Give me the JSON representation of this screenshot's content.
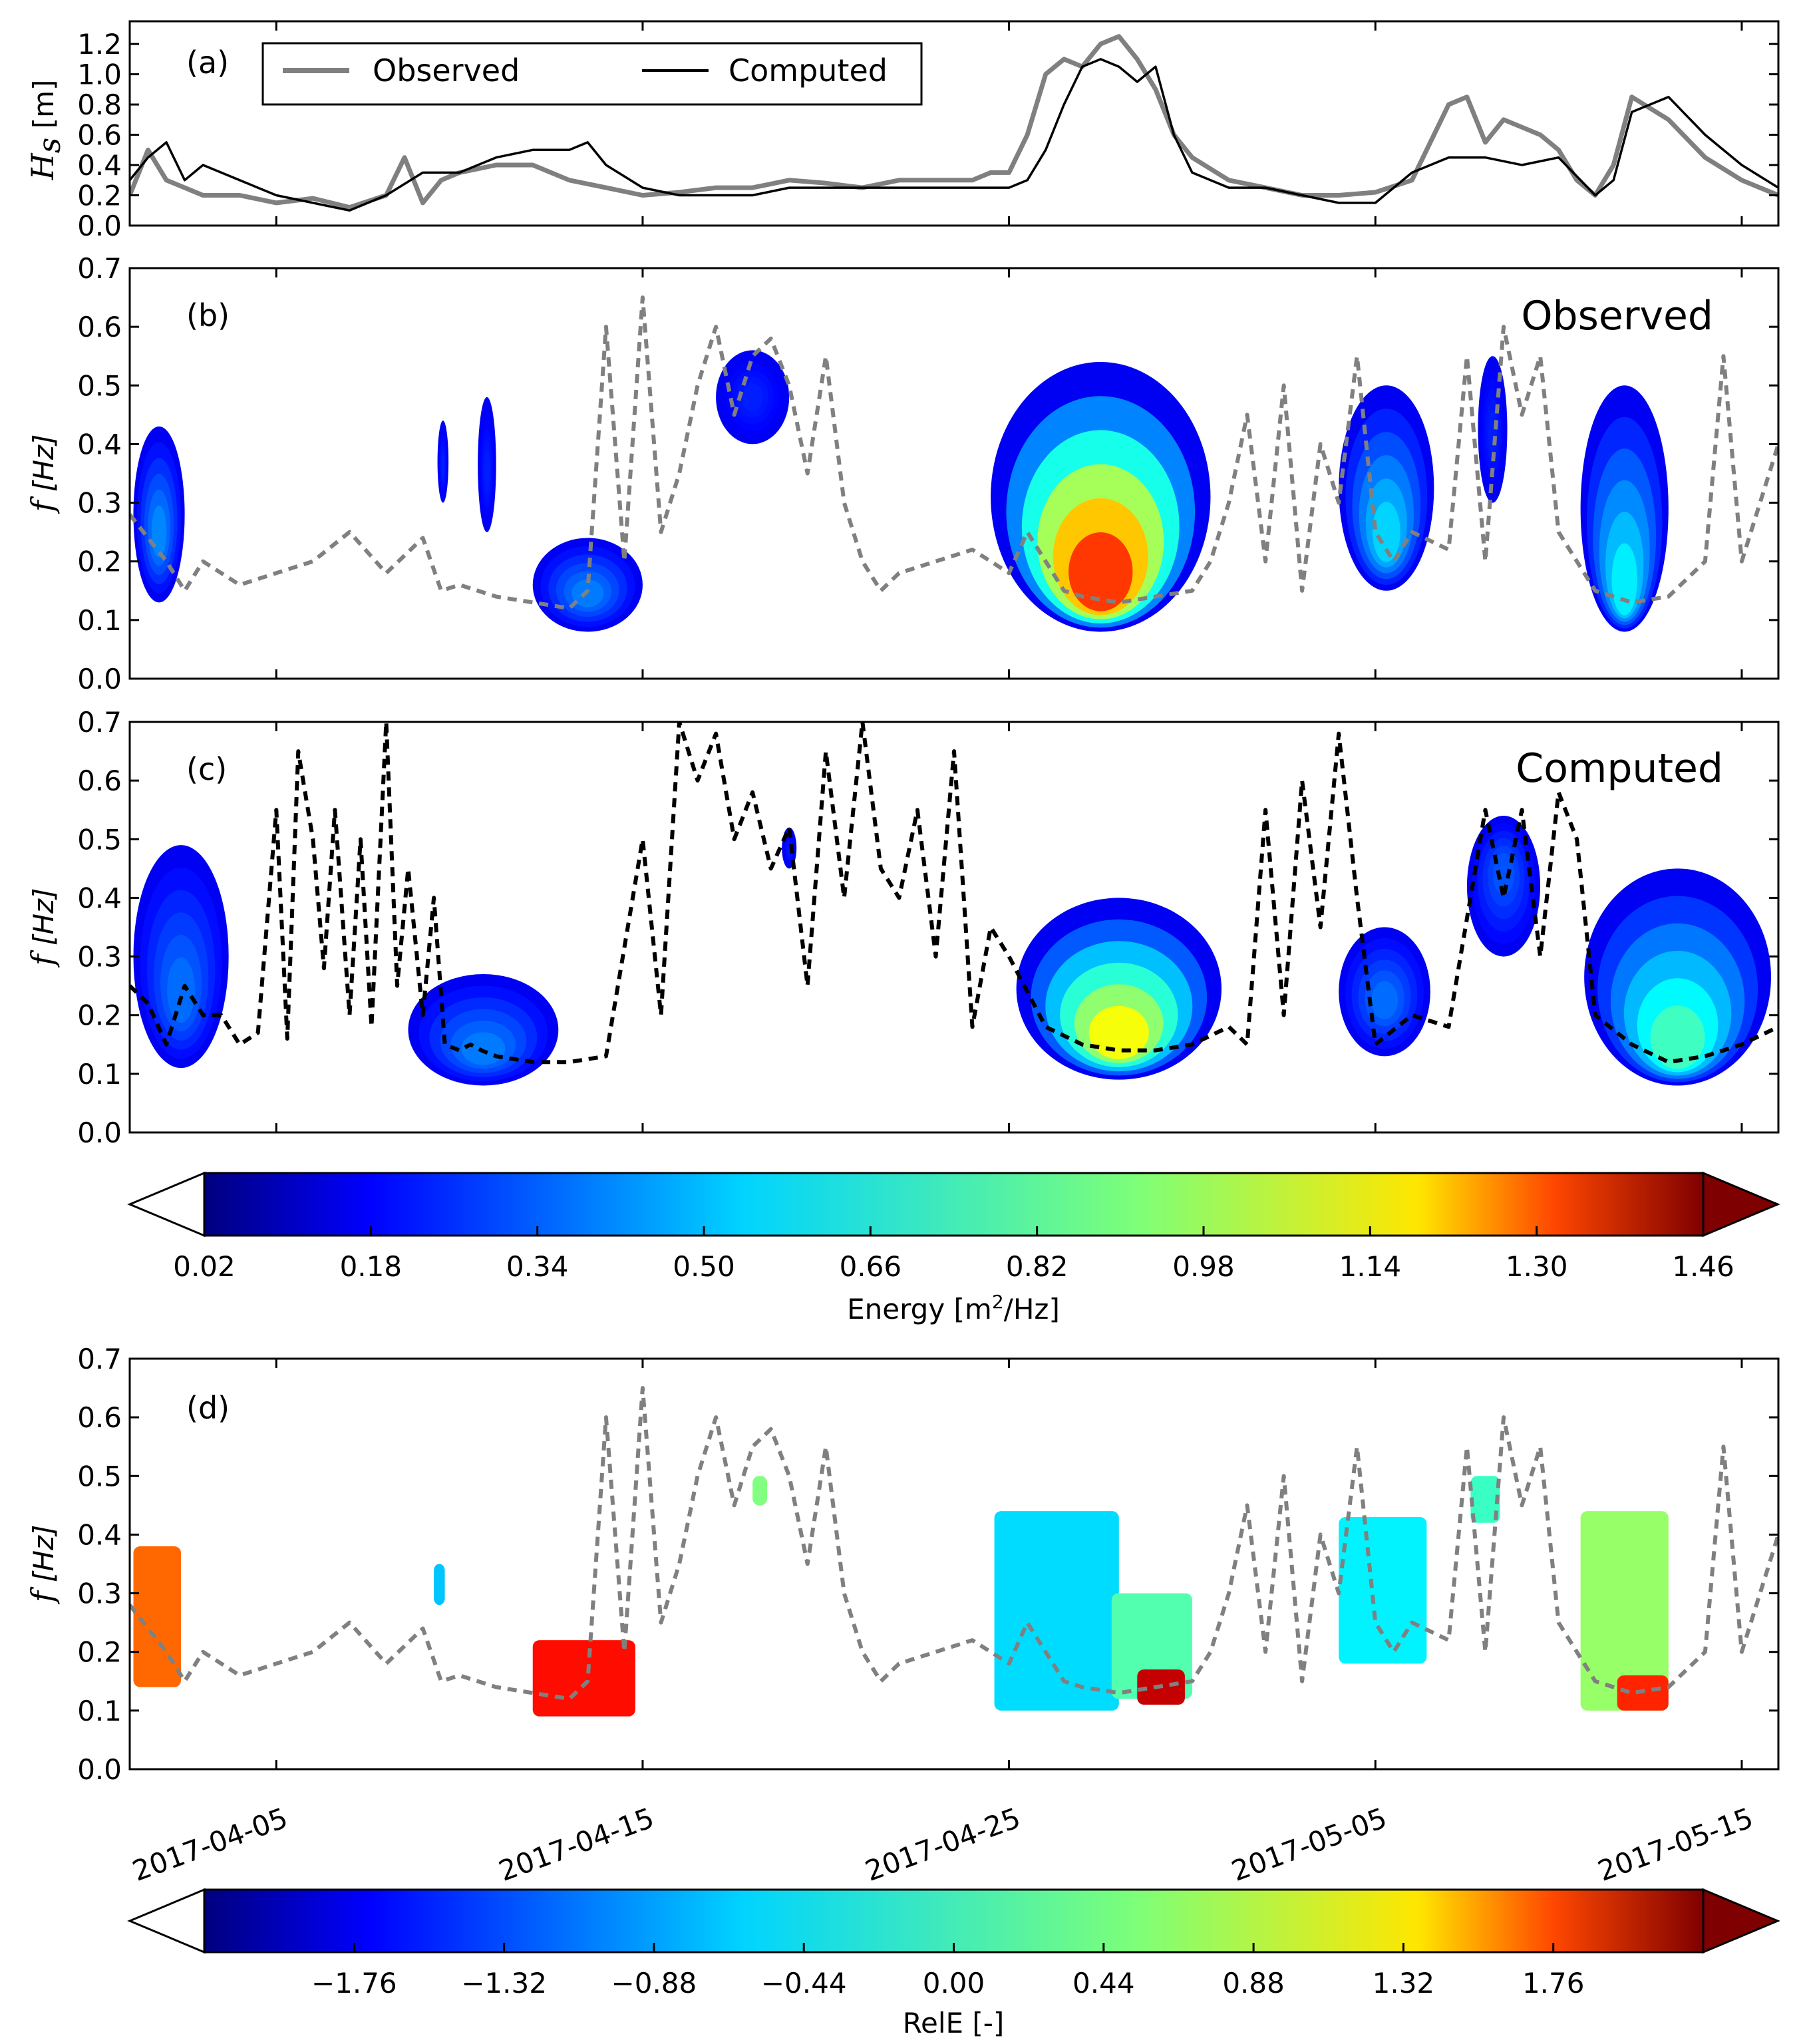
{
  "chart_data": [
    {
      "id": "a",
      "type": "line",
      "panel_label": "(a)",
      "ylabel": "H_s [m]",
      "ylabel_main": "H",
      "ylabel_sub": "s",
      "ylabel_unit": " [m]",
      "ylim": [
        0.0,
        1.35
      ],
      "yticks": [
        "0.0",
        "0.2",
        "0.4",
        "0.6",
        "0.8",
        "1.0",
        "1.2"
      ],
      "x_unit": "days since 2017-04-01",
      "xlim": [
        0,
        45
      ],
      "legend": {
        "position": "top-left",
        "observed_label": "Observed",
        "computed_label": "Computed"
      },
      "series": [
        {
          "name": "Observed",
          "color": "#808080",
          "x": [
            0,
            0.5,
            1,
            1.5,
            2,
            3,
            4,
            5,
            6,
            7,
            7.5,
            8,
            8.5,
            9,
            10,
            11,
            12,
            13,
            14,
            15,
            16,
            17,
            18,
            19,
            20,
            21,
            22,
            23,
            23.5,
            24,
            24.5,
            25,
            25.5,
            26,
            26.5,
            27,
            27.5,
            28,
            28.5,
            29,
            30,
            31,
            32,
            33,
            34,
            35,
            35.5,
            36,
            36.5,
            37,
            37.5,
            38,
            38.5,
            39,
            39.5,
            40,
            40.5,
            41,
            42,
            43,
            44,
            45
          ],
          "y": [
            0.2,
            0.5,
            0.3,
            0.25,
            0.2,
            0.2,
            0.15,
            0.18,
            0.12,
            0.2,
            0.45,
            0.15,
            0.3,
            0.35,
            0.4,
            0.4,
            0.3,
            0.25,
            0.2,
            0.22,
            0.25,
            0.25,
            0.3,
            0.28,
            0.25,
            0.3,
            0.3,
            0.3,
            0.35,
            0.35,
            0.6,
            1.0,
            1.1,
            1.05,
            1.2,
            1.25,
            1.1,
            0.9,
            0.6,
            0.45,
            0.3,
            0.25,
            0.2,
            0.2,
            0.22,
            0.3,
            0.55,
            0.8,
            0.85,
            0.55,
            0.7,
            0.65,
            0.6,
            0.5,
            0.3,
            0.2,
            0.4,
            0.85,
            0.7,
            0.45,
            0.3,
            0.2
          ]
        },
        {
          "name": "Computed",
          "color": "#000000",
          "x": [
            0,
            0.5,
            1,
            1.5,
            2,
            3,
            4,
            5,
            6,
            7,
            8,
            9,
            10,
            11,
            12,
            12.5,
            13,
            14,
            15,
            16,
            17,
            18,
            19,
            20,
            21,
            22,
            23,
            24,
            24.5,
            25,
            25.5,
            26,
            26.5,
            27,
            27.5,
            28,
            28.5,
            29,
            30,
            31,
            32,
            33,
            34,
            35,
            36,
            37,
            38,
            39,
            40,
            40.5,
            41,
            42,
            43,
            44,
            45
          ],
          "y": [
            0.3,
            0.45,
            0.55,
            0.3,
            0.4,
            0.3,
            0.2,
            0.15,
            0.1,
            0.2,
            0.35,
            0.35,
            0.45,
            0.5,
            0.5,
            0.55,
            0.4,
            0.25,
            0.2,
            0.2,
            0.2,
            0.25,
            0.25,
            0.25,
            0.25,
            0.25,
            0.25,
            0.25,
            0.3,
            0.5,
            0.8,
            1.05,
            1.1,
            1.05,
            0.95,
            1.05,
            0.6,
            0.35,
            0.25,
            0.25,
            0.2,
            0.15,
            0.15,
            0.35,
            0.45,
            0.45,
            0.4,
            0.45,
            0.2,
            0.3,
            0.75,
            0.85,
            0.6,
            0.4,
            0.25
          ]
        }
      ]
    },
    {
      "id": "b",
      "type": "heatmap",
      "panel_label": "(b)",
      "title": "Observed",
      "ylabel": "f [Hz]",
      "ylabel_main": "f",
      "ylabel_unit": " [Hz]",
      "ylim": [
        0.0,
        0.7
      ],
      "yticks": [
        "0.0",
        "0.1",
        "0.2",
        "0.3",
        "0.4",
        "0.5",
        "0.6",
        "0.7"
      ],
      "xlim": [
        0,
        45
      ],
      "peak_frequency_line": {
        "color": "#808080",
        "style": "dashed",
        "x": [
          0,
          0.5,
          1,
          1.5,
          2,
          3,
          4,
          5,
          6,
          7,
          8,
          8.5,
          9,
          10,
          11,
          12,
          12.5,
          13,
          13.5,
          14,
          14.5,
          15,
          15.5,
          16,
          16.5,
          17,
          17.5,
          18,
          18.5,
          19,
          19.5,
          20,
          20.5,
          21,
          22,
          23,
          24,
          24.5,
          25,
          25.5,
          26,
          27,
          28,
          29,
          29.5,
          30,
          30.5,
          31,
          31.5,
          32,
          32.5,
          33,
          33.5,
          34,
          34.5,
          35,
          36,
          36.5,
          37,
          37.5,
          38,
          38.5,
          39,
          39.5,
          40,
          40.5,
          41,
          42,
          43,
          43.5,
          44,
          45
        ],
        "y": [
          0.28,
          0.24,
          0.2,
          0.15,
          0.2,
          0.16,
          0.18,
          0.2,
          0.25,
          0.18,
          0.24,
          0.15,
          0.16,
          0.14,
          0.13,
          0.12,
          0.15,
          0.6,
          0.2,
          0.65,
          0.25,
          0.35,
          0.5,
          0.6,
          0.45,
          0.55,
          0.58,
          0.5,
          0.35,
          0.55,
          0.3,
          0.2,
          0.15,
          0.18,
          0.2,
          0.22,
          0.18,
          0.25,
          0.2,
          0.15,
          0.14,
          0.13,
          0.14,
          0.15,
          0.2,
          0.3,
          0.45,
          0.2,
          0.5,
          0.15,
          0.4,
          0.3,
          0.55,
          0.25,
          0.2,
          0.25,
          0.22,
          0.55,
          0.2,
          0.6,
          0.45,
          0.55,
          0.25,
          0.2,
          0.15,
          0.14,
          0.13,
          0.14,
          0.2,
          0.55,
          0.2,
          0.4
        ]
      },
      "energy_blobs": [
        {
          "t_start": 0.1,
          "t_end": 1.5,
          "f_low": 0.13,
          "f_high": 0.43,
          "f_peak": 0.24,
          "max_energy": 0.3
        },
        {
          "t_start": 8.4,
          "t_end": 8.7,
          "f_low": 0.3,
          "f_high": 0.44,
          "f_peak": 0.36,
          "max_energy": 0.1
        },
        {
          "t_start": 9.5,
          "t_end": 10.0,
          "f_low": 0.25,
          "f_high": 0.48,
          "f_peak": 0.35,
          "max_energy": 0.1
        },
        {
          "t_start": 11.0,
          "t_end": 14.0,
          "f_low": 0.08,
          "f_high": 0.24,
          "f_peak": 0.14,
          "max_energy": 0.28
        },
        {
          "t_start": 16.0,
          "t_end": 18.0,
          "f_low": 0.4,
          "f_high": 0.56,
          "f_peak": 0.48,
          "max_energy": 0.1
        },
        {
          "t_start": 23.5,
          "t_end": 29.5,
          "f_low": 0.08,
          "f_high": 0.54,
          "f_peak": 0.13,
          "max_energy": 1.4
        },
        {
          "t_start": 33.0,
          "t_end": 35.6,
          "f_low": 0.15,
          "f_high": 0.5,
          "f_peak": 0.22,
          "max_energy": 0.45
        },
        {
          "t_start": 36.8,
          "t_end": 37.6,
          "f_low": 0.3,
          "f_high": 0.55,
          "f_peak": 0.42,
          "max_energy": 0.1
        },
        {
          "t_start": 39.6,
          "t_end": 42.0,
          "f_low": 0.08,
          "f_high": 0.5,
          "f_peak": 0.12,
          "max_energy": 0.5
        }
      ]
    },
    {
      "id": "c",
      "type": "heatmap",
      "panel_label": "(c)",
      "title": "Computed",
      "ylabel": "f [Hz]",
      "ylabel_main": "f",
      "ylabel_unit": " [Hz]",
      "ylim": [
        0.0,
        0.7
      ],
      "yticks": [
        "0.0",
        "0.1",
        "0.2",
        "0.3",
        "0.4",
        "0.5",
        "0.6",
        "0.7"
      ],
      "xlim": [
        0,
        45
      ],
      "peak_frequency_line": {
        "color": "#000000",
        "style": "dashed",
        "x": [
          0,
          0.5,
          1,
          1.5,
          2,
          2.5,
          3,
          3.5,
          4,
          4.3,
          4.6,
          5,
          5.3,
          5.6,
          6,
          6.3,
          6.6,
          7,
          7.3,
          7.6,
          8,
          8.3,
          8.6,
          9,
          9.3,
          9.6,
          10,
          11,
          12,
          13,
          14,
          14.5,
          15,
          15.5,
          16,
          16.5,
          17,
          17.5,
          18,
          18.5,
          19,
          19.5,
          20,
          20.5,
          21,
          21.5,
          22,
          22.5,
          23,
          23.5,
          24,
          25,
          26,
          27,
          28,
          29,
          30,
          30.5,
          31,
          31.5,
          32,
          32.5,
          33,
          33.5,
          34,
          35,
          36,
          37,
          37.5,
          38,
          38.5,
          39,
          39.5,
          40,
          41,
          42,
          43,
          44,
          45
        ],
        "y": [
          0.25,
          0.22,
          0.15,
          0.25,
          0.2,
          0.2,
          0.15,
          0.17,
          0.55,
          0.16,
          0.65,
          0.5,
          0.28,
          0.55,
          0.2,
          0.5,
          0.18,
          0.7,
          0.25,
          0.45,
          0.2,
          0.4,
          0.15,
          0.14,
          0.15,
          0.14,
          0.13,
          0.12,
          0.12,
          0.13,
          0.5,
          0.2,
          0.7,
          0.6,
          0.68,
          0.5,
          0.58,
          0.45,
          0.52,
          0.25,
          0.65,
          0.4,
          0.7,
          0.45,
          0.4,
          0.55,
          0.3,
          0.65,
          0.18,
          0.35,
          0.3,
          0.18,
          0.15,
          0.14,
          0.14,
          0.15,
          0.18,
          0.15,
          0.55,
          0.2,
          0.6,
          0.35,
          0.68,
          0.4,
          0.15,
          0.2,
          0.18,
          0.55,
          0.4,
          0.55,
          0.3,
          0.58,
          0.5,
          0.2,
          0.15,
          0.12,
          0.13,
          0.15,
          0.18
        ]
      },
      "energy_blobs": [
        {
          "t_start": 0.1,
          "t_end": 2.7,
          "f_low": 0.11,
          "f_high": 0.49,
          "f_peak": 0.22,
          "max_energy": 0.25
        },
        {
          "t_start": 7.6,
          "t_end": 11.7,
          "f_low": 0.08,
          "f_high": 0.27,
          "f_peak": 0.13,
          "max_energy": 0.28
        },
        {
          "t_start": 17.8,
          "t_end": 18.2,
          "f_low": 0.45,
          "f_high": 0.52,
          "f_peak": 0.48,
          "max_energy": 0.08
        },
        {
          "t_start": 24.2,
          "t_end": 29.8,
          "f_low": 0.09,
          "f_high": 0.4,
          "f_peak": 0.14,
          "max_energy": 1.0
        },
        {
          "t_start": 33.0,
          "t_end": 35.5,
          "f_low": 0.13,
          "f_high": 0.35,
          "f_peak": 0.22,
          "max_energy": 0.25
        },
        {
          "t_start": 36.5,
          "t_end": 38.5,
          "f_low": 0.3,
          "f_high": 0.54,
          "f_peak": 0.45,
          "max_energy": 0.2
        },
        {
          "t_start": 39.7,
          "t_end": 44.8,
          "f_low": 0.08,
          "f_high": 0.45,
          "f_peak": 0.12,
          "max_energy": 0.65
        }
      ]
    },
    {
      "id": "cb1",
      "type": "colorbar",
      "label_main": "Energy [m",
      "label_sup": "2",
      "label_end": "/Hz]",
      "range": [
        0.02,
        1.46
      ],
      "ticks": [
        "0.02",
        "0.18",
        "0.34",
        "0.50",
        "0.66",
        "0.82",
        "0.98",
        "1.14",
        "1.30",
        "1.46"
      ]
    },
    {
      "id": "d",
      "type": "heatmap",
      "panel_label": "(d)",
      "ylabel": "f [Hz]",
      "ylabel_main": "f",
      "ylabel_unit": " [Hz]",
      "ylim": [
        0.0,
        0.7
      ],
      "yticks": [
        "0.0",
        "0.1",
        "0.2",
        "0.3",
        "0.4",
        "0.5",
        "0.6",
        "0.7"
      ],
      "xlim": [
        0,
        45
      ],
      "xticks": [
        {
          "x": 4,
          "label": "2017-04-05"
        },
        {
          "x": 14,
          "label": "2017-04-15"
        },
        {
          "x": 24,
          "label": "2017-04-25"
        },
        {
          "x": 34,
          "label": "2017-05-05"
        },
        {
          "x": 44,
          "label": "2017-05-15"
        }
      ],
      "relE_patches": [
        {
          "t_start": 0.1,
          "t_end": 1.4,
          "f_low": 0.14,
          "f_high": 0.38,
          "relE": 1.2
        },
        {
          "t_start": 8.3,
          "t_end": 8.6,
          "f_low": 0.28,
          "f_high": 0.35,
          "relE": -0.8
        },
        {
          "t_start": 11.0,
          "t_end": 13.8,
          "f_low": 0.09,
          "f_high": 0.22,
          "relE": 1.6
        },
        {
          "t_start": 17.0,
          "t_end": 17.4,
          "f_low": 0.45,
          "f_high": 0.5,
          "relE": 0.0
        },
        {
          "t_start": 23.6,
          "t_end": 27.0,
          "f_low": 0.1,
          "f_high": 0.44,
          "relE": -0.7
        },
        {
          "t_start": 26.8,
          "t_end": 29.0,
          "f_low": 0.12,
          "f_high": 0.3,
          "relE": -0.2
        },
        {
          "t_start": 27.5,
          "t_end": 28.8,
          "f_low": 0.11,
          "f_high": 0.17,
          "relE": 1.9
        },
        {
          "t_start": 33.0,
          "t_end": 35.4,
          "f_low": 0.18,
          "f_high": 0.43,
          "relE": -0.6
        },
        {
          "t_start": 36.6,
          "t_end": 37.4,
          "f_low": 0.42,
          "f_high": 0.5,
          "relE": -0.3
        },
        {
          "t_start": 39.6,
          "t_end": 42.0,
          "f_low": 0.1,
          "f_high": 0.44,
          "relE": 0.1
        },
        {
          "t_start": 40.6,
          "t_end": 42.0,
          "f_low": 0.1,
          "f_high": 0.16,
          "relE": 1.5
        }
      ],
      "peak_frequency_line": {
        "color": "#808080",
        "style": "dashed",
        "ref": "b"
      }
    },
    {
      "id": "cb2",
      "type": "colorbar",
      "label_main": "RelE [-]",
      "range": [
        -2.2,
        2.2
      ],
      "ticks": [
        "−1.76",
        "−1.32",
        "−0.88",
        "−0.44",
        "0.00",
        "0.44",
        "0.88",
        "1.32",
        "1.76"
      ]
    }
  ]
}
